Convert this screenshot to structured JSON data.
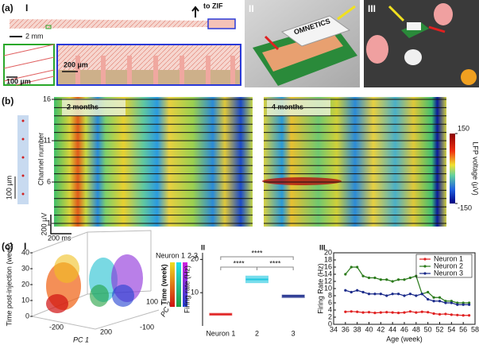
{
  "panel_a": {
    "label": "(a)",
    "sub_i": "I",
    "to_zif": "to ZIF",
    "scale_main": "2 mm",
    "scale_green": "100 µm",
    "scale_blue": "200 µm",
    "sub_ii": "II",
    "connector_text": "OMNETICS",
    "sub_iii": "III"
  },
  "panel_b": {
    "label": "(b)",
    "left_title": "2 months",
    "right_title": "4 months",
    "y_label": "Channel number",
    "y_ticks": [
      16,
      11,
      6,
      1
    ],
    "channel_range": [
      1,
      16
    ],
    "scale_depth": "100 µm",
    "scale_voltage": "200 µV",
    "scale_time": "200 ms",
    "colorbar_label": "LFP voltage (µV)",
    "colorbar_ticks": [
      150,
      -150
    ],
    "colorbar_range": [
      -150,
      150
    ]
  },
  "panel_c": {
    "label": "(c)",
    "sub_i": "I",
    "z_label": "Time post-injection (week)",
    "z_ticks": [
      40,
      30,
      20,
      10,
      0
    ],
    "z_range": [
      0,
      40
    ],
    "pc1_label": "PC 1",
    "pc1_ticks": [
      -200,
      200
    ],
    "pc2_label": "PC 2",
    "pc2_ticks": [
      100,
      -100
    ],
    "legend_names": [
      "Neuron 1",
      "2",
      "3"
    ],
    "legend_colors": [
      "#d81e1e",
      "#1ec8e6",
      "#6a2ab8"
    ],
    "time_label": "Time (week)"
  },
  "chart_data": [
    {
      "type": "box",
      "sub_label": "II",
      "y_label": "Firing rate (Hz)",
      "categories": [
        "Neuron 1",
        "2",
        "3"
      ],
      "colors": [
        "#e02020",
        "#20c8e0",
        "#1a2a8a"
      ],
      "q1": [
        3.2,
        13,
        8.5
      ],
      "median": [
        3.5,
        14,
        9
      ],
      "q3": [
        3.8,
        15,
        9.3
      ],
      "ylim": [
        0,
        22
      ],
      "yticks": [
        10,
        20
      ],
      "significance": [
        "****",
        "****",
        "****"
      ]
    },
    {
      "type": "line",
      "sub_label": "III",
      "x_label": "Age (week)",
      "y_label": "Firing Rate (Hz)",
      "x": [
        36,
        37,
        38,
        39,
        40,
        41,
        42,
        43,
        44,
        45,
        46,
        47,
        48,
        49,
        50,
        51,
        52,
        53,
        54,
        55,
        56,
        57
      ],
      "series": [
        {
          "name": "Neuron 1",
          "color": "#e02020",
          "values": [
            3.5,
            3.6,
            3.5,
            3.3,
            3.4,
            3.2,
            3.3,
            3.4,
            3.3,
            3.2,
            3.3,
            3.6,
            3.3,
            3.5,
            3.4,
            3,
            2.8,
            2.9,
            2.7,
            2.6,
            2.5,
            2.5
          ]
        },
        {
          "name": "Neuron 2",
          "color": "#2a7a1a",
          "values": [
            14,
            16,
            16,
            13.5,
            13,
            13,
            12.5,
            12.5,
            12,
            12.5,
            12.5,
            13,
            13.5,
            8.5,
            9,
            7.5,
            7.5,
            6.5,
            6.5,
            6,
            6,
            6
          ]
        },
        {
          "name": "Neuron 3",
          "color": "#1a2a8a",
          "values": [
            9.5,
            9,
            9.5,
            9,
            8.5,
            8.5,
            8.5,
            8,
            8.5,
            8.5,
            8,
            8.5,
            8,
            8.5,
            7,
            6.5,
            6.5,
            6,
            6,
            5.5,
            5.5,
            5.5
          ]
        }
      ],
      "xlim": [
        34,
        58
      ],
      "xticks": [
        34,
        36,
        38,
        40,
        42,
        44,
        46,
        48,
        50,
        52,
        54,
        56,
        58
      ],
      "ylim": [
        0,
        20
      ],
      "yticks": [
        0,
        2,
        4,
        6,
        8,
        10,
        12,
        14,
        16,
        18,
        20
      ]
    }
  ]
}
